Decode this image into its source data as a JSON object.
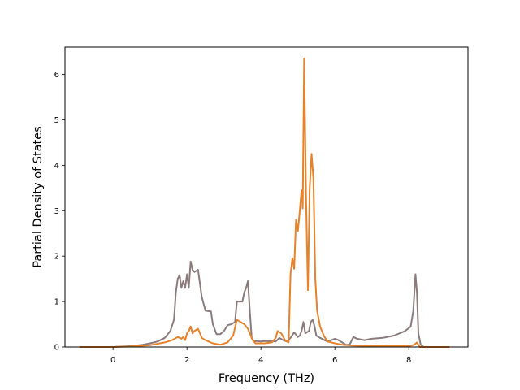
{
  "chart_data": {
    "type": "line",
    "title": "",
    "xlabel": "Frequency (THz)",
    "ylabel": "Partial Density of States",
    "xlim": [
      -1.3,
      9.6
    ],
    "ylim": [
      0,
      6.6
    ],
    "xticks": [
      0,
      2,
      4,
      6,
      8
    ],
    "yticks": [
      0,
      1,
      2,
      3,
      4,
      5,
      6
    ],
    "grid": false,
    "legend": "none",
    "series": [
      {
        "color": "#8c7b7d",
        "points": [
          [
            -0.9,
            0.0
          ],
          [
            0.0,
            0.0
          ],
          [
            0.5,
            0.02
          ],
          [
            0.8,
            0.05
          ],
          [
            1.0,
            0.08
          ],
          [
            1.2,
            0.12
          ],
          [
            1.4,
            0.2
          ],
          [
            1.55,
            0.35
          ],
          [
            1.65,
            0.6
          ],
          [
            1.7,
            1.2
          ],
          [
            1.75,
            1.5
          ],
          [
            1.8,
            1.58
          ],
          [
            1.85,
            1.3
          ],
          [
            1.9,
            1.45
          ],
          [
            1.95,
            1.3
          ],
          [
            2.0,
            1.6
          ],
          [
            2.05,
            1.3
          ],
          [
            2.1,
            1.88
          ],
          [
            2.15,
            1.7
          ],
          [
            2.2,
            1.65
          ],
          [
            2.3,
            1.7
          ],
          [
            2.4,
            1.1
          ],
          [
            2.5,
            0.8
          ],
          [
            2.65,
            0.78
          ],
          [
            2.7,
            0.5
          ],
          [
            2.8,
            0.28
          ],
          [
            2.9,
            0.28
          ],
          [
            3.0,
            0.35
          ],
          [
            3.1,
            0.48
          ],
          [
            3.2,
            0.5
          ],
          [
            3.3,
            0.55
          ],
          [
            3.35,
            1.0
          ],
          [
            3.5,
            1.0
          ],
          [
            3.55,
            1.2
          ],
          [
            3.6,
            1.3
          ],
          [
            3.65,
            1.45
          ],
          [
            3.7,
            0.8
          ],
          [
            3.75,
            0.2
          ],
          [
            3.8,
            0.12
          ],
          [
            3.9,
            0.13
          ],
          [
            4.0,
            0.12
          ],
          [
            4.1,
            0.13
          ],
          [
            4.4,
            0.12
          ],
          [
            4.5,
            0.2
          ],
          [
            4.6,
            0.15
          ],
          [
            4.7,
            0.12
          ],
          [
            4.8,
            0.2
          ],
          [
            4.9,
            0.32
          ],
          [
            5.0,
            0.22
          ],
          [
            5.05,
            0.25
          ],
          [
            5.1,
            0.35
          ],
          [
            5.15,
            0.55
          ],
          [
            5.2,
            0.3
          ],
          [
            5.3,
            0.35
          ],
          [
            5.35,
            0.55
          ],
          [
            5.4,
            0.6
          ],
          [
            5.45,
            0.45
          ],
          [
            5.5,
            0.25
          ],
          [
            5.6,
            0.2
          ],
          [
            5.8,
            0.12
          ],
          [
            6.0,
            0.18
          ],
          [
            6.1,
            0.15
          ],
          [
            6.3,
            0.05
          ],
          [
            6.4,
            0.05
          ],
          [
            6.5,
            0.22
          ],
          [
            6.6,
            0.18
          ],
          [
            6.8,
            0.15
          ],
          [
            7.0,
            0.18
          ],
          [
            7.3,
            0.2
          ],
          [
            7.6,
            0.25
          ],
          [
            7.9,
            0.35
          ],
          [
            8.05,
            0.45
          ],
          [
            8.12,
            0.8
          ],
          [
            8.18,
            1.6
          ],
          [
            8.22,
            1.2
          ],
          [
            8.26,
            0.3
          ],
          [
            8.32,
            0.05
          ],
          [
            8.4,
            0.0
          ],
          [
            9.1,
            0.0
          ]
        ]
      },
      {
        "color": "#e6822a",
        "points": [
          [
            -0.9,
            0.0
          ],
          [
            0.0,
            0.0
          ],
          [
            0.5,
            0.01
          ],
          [
            1.0,
            0.04
          ],
          [
            1.4,
            0.1
          ],
          [
            1.6,
            0.15
          ],
          [
            1.75,
            0.22
          ],
          [
            1.85,
            0.18
          ],
          [
            1.9,
            0.22
          ],
          [
            1.95,
            0.15
          ],
          [
            2.0,
            0.3
          ],
          [
            2.05,
            0.35
          ],
          [
            2.1,
            0.45
          ],
          [
            2.15,
            0.3
          ],
          [
            2.2,
            0.35
          ],
          [
            2.3,
            0.4
          ],
          [
            2.4,
            0.2
          ],
          [
            2.5,
            0.15
          ],
          [
            2.7,
            0.08
          ],
          [
            2.9,
            0.05
          ],
          [
            3.1,
            0.1
          ],
          [
            3.25,
            0.25
          ],
          [
            3.35,
            0.6
          ],
          [
            3.45,
            0.55
          ],
          [
            3.55,
            0.5
          ],
          [
            3.65,
            0.4
          ],
          [
            3.75,
            0.2
          ],
          [
            3.85,
            0.08
          ],
          [
            4.1,
            0.08
          ],
          [
            4.3,
            0.1
          ],
          [
            4.4,
            0.2
          ],
          [
            4.45,
            0.35
          ],
          [
            4.55,
            0.3
          ],
          [
            4.65,
            0.15
          ],
          [
            4.75,
            0.1
          ],
          [
            4.8,
            1.6
          ],
          [
            4.85,
            1.95
          ],
          [
            4.9,
            1.72
          ],
          [
            4.95,
            2.8
          ],
          [
            5.0,
            2.55
          ],
          [
            5.05,
            3.0
          ],
          [
            5.1,
            3.45
          ],
          [
            5.13,
            3.05
          ],
          [
            5.17,
            6.35
          ],
          [
            5.22,
            3.3
          ],
          [
            5.27,
            1.25
          ],
          [
            5.32,
            3.5
          ],
          [
            5.37,
            4.25
          ],
          [
            5.42,
            3.7
          ],
          [
            5.47,
            1.5
          ],
          [
            5.52,
            0.8
          ],
          [
            5.6,
            0.45
          ],
          [
            5.7,
            0.25
          ],
          [
            5.8,
            0.12
          ],
          [
            6.0,
            0.08
          ],
          [
            6.2,
            0.05
          ],
          [
            6.5,
            0.03
          ],
          [
            7.0,
            0.02
          ],
          [
            7.5,
            0.02
          ],
          [
            8.0,
            0.02
          ],
          [
            8.15,
            0.05
          ],
          [
            8.22,
            0.1
          ],
          [
            8.3,
            0.0
          ],
          [
            9.1,
            0.0
          ]
        ]
      }
    ]
  }
}
